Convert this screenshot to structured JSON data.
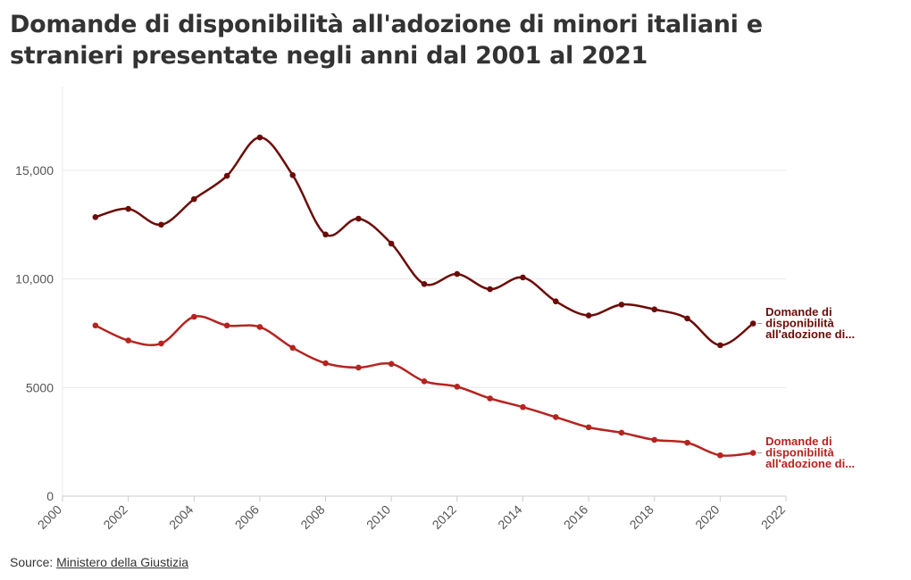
{
  "title": "Domande di disponibilità all'adozione di minori italiani e stranieri presentate negli anni dal 2001 al 2021",
  "source": {
    "prefix": "Source: ",
    "link_text": "Ministero della Giustizia"
  },
  "colors": {
    "series_1": "#6b0c08",
    "series_2": "#b5241f",
    "grid": "#e8e8e8",
    "axis": "#cccccc"
  },
  "chart_data": {
    "type": "line",
    "x_ticks": [
      2000,
      2002,
      2004,
      2006,
      2008,
      2010,
      2012,
      2014,
      2016,
      2018,
      2020,
      2022
    ],
    "y_ticks": [
      0,
      5000,
      10000,
      15000
    ],
    "y_tick_labels": [
      "0",
      "5000",
      "10,000",
      "15,000"
    ],
    "xlim": [
      2000,
      2022
    ],
    "ylim": [
      0,
      18000
    ],
    "grid": true,
    "x": [
      2001,
      2002,
      2003,
      2004,
      2005,
      2006,
      2007,
      2008,
      2009,
      2010,
      2011,
      2012,
      2013,
      2014,
      2015,
      2016,
      2017,
      2018,
      2019,
      2020,
      2021
    ],
    "series": [
      {
        "label_lines": [
          "Domande di",
          "disponibilità",
          "all'adozione di..."
        ],
        "color": "#6b0c08",
        "values": [
          12850,
          13230,
          12500,
          13680,
          14750,
          16520,
          14780,
          12050,
          12780,
          11630,
          9770,
          10230,
          9530,
          10070,
          8970,
          8320,
          8820,
          8600,
          8180,
          6950,
          7950
        ]
      },
      {
        "label_lines": [
          "Domande di",
          "disponibilità",
          "all'adozione di..."
        ],
        "color": "#b5241f",
        "values": [
          7860,
          7170,
          7030,
          8260,
          7860,
          7790,
          6830,
          6120,
          5920,
          6090,
          5290,
          5040,
          4500,
          4100,
          3640,
          3170,
          2920,
          2590,
          2460,
          1880,
          1990
        ]
      }
    ]
  }
}
